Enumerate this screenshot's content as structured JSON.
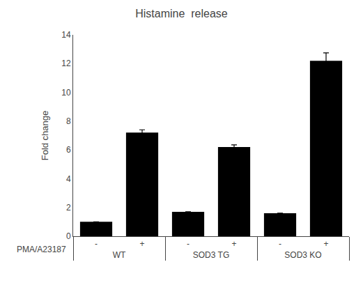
{
  "chart_data": {
    "type": "bar",
    "title": "Histamine  release",
    "ylabel": "Fold change",
    "xlabel": "PMA/A23187",
    "categories": [
      "-",
      "+",
      "-",
      "+",
      "-",
      "+"
    ],
    "groups": [
      "WT",
      "WT",
      "SOD3 TG",
      "SOD3 TG",
      "SOD3 KO",
      "SOD3 KO"
    ],
    "values": [
      1.0,
      7.2,
      1.7,
      6.2,
      1.6,
      12.2
    ],
    "errors": [
      0.0,
      0.2,
      0.0,
      0.15,
      0.0,
      0.55
    ],
    "color": "#000000",
    "ylim": [
      0,
      14
    ],
    "yticks": [
      0,
      2,
      4,
      6,
      8,
      10,
      12,
      14
    ],
    "grid": false
  }
}
